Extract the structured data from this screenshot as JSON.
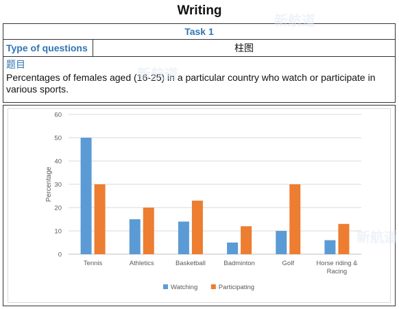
{
  "page": {
    "title": "Writing",
    "task_label": "Task 1",
    "type_label": "Type of questions",
    "type_value": "柱图",
    "prompt_heading": "题目",
    "prompt_text": "Percentages of females aged (16-25) in a particular country who watch or participate in various sports."
  },
  "watermark": {
    "text": "新航道"
  },
  "colors": {
    "watching": "#5b9bd5",
    "participating": "#ed7d31",
    "label_blue": "#2f74b5"
  },
  "chart_data": {
    "type": "bar",
    "title": "",
    "xlabel": "",
    "ylabel": "Percentage",
    "ylim": [
      0,
      60
    ],
    "yticks": [
      0,
      10,
      20,
      30,
      40,
      50,
      60
    ],
    "grid": true,
    "legend_position": "bottom",
    "categories": [
      "Tennis",
      "Athletics",
      "Basketball",
      "Badminton",
      "Golf",
      "Horse riding & Racing"
    ],
    "category_lines": [
      [
        "Tennis"
      ],
      [
        "Athletics"
      ],
      [
        "Basketball"
      ],
      [
        "Badminton"
      ],
      [
        "Golf"
      ],
      [
        "Horse riding &",
        "Racing"
      ]
    ],
    "series": [
      {
        "name": "Watching",
        "color": "#5b9bd5",
        "values": [
          50,
          15,
          14,
          5,
          10,
          6
        ]
      },
      {
        "name": "Participating",
        "color": "#ed7d31",
        "values": [
          30,
          20,
          23,
          12,
          30,
          13
        ]
      }
    ]
  }
}
